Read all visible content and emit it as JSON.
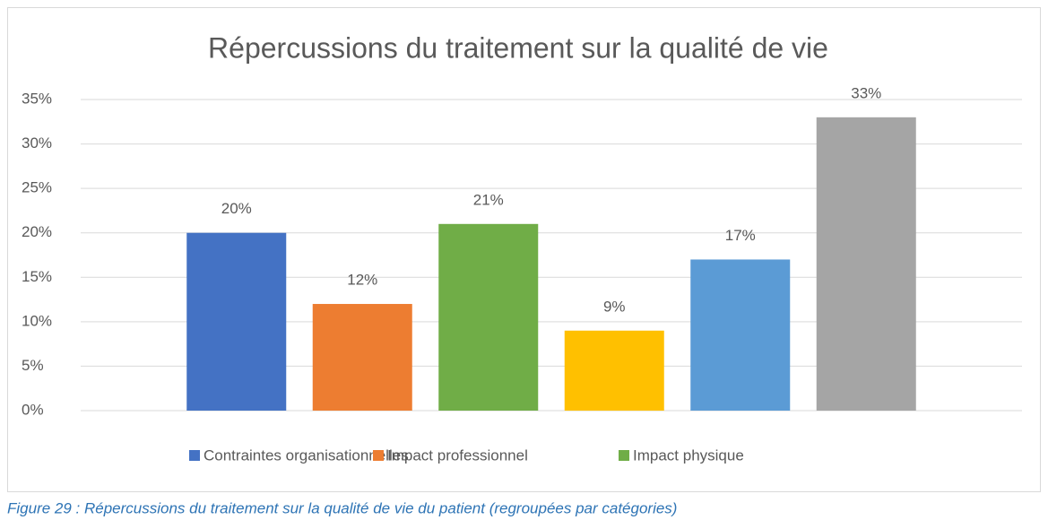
{
  "chart_data": {
    "type": "bar",
    "title": "Répercussions du traitement sur la qualité de vie",
    "values": [
      20,
      12,
      21,
      9,
      17,
      33
    ],
    "value_labels": [
      "20%",
      "12%",
      "21%",
      "9%",
      "17%",
      "33%"
    ],
    "colors": [
      "#4472c4",
      "#ed7d31",
      "#70ad47",
      "#ffc000",
      "#5b9bd5",
      "#a5a5a5"
    ],
    "legend": [
      {
        "name": "Contraintes organisationnelles",
        "color": "#4472c4"
      },
      {
        "name": "Impact professionnel",
        "color": "#ed7d31"
      },
      {
        "name": "Impact physique",
        "color": "#70ad47"
      }
    ],
    "ylim": [
      0,
      35
    ],
    "yticks": [
      {
        "value": 0,
        "label": "0%"
      },
      {
        "value": 5,
        "label": "5%"
      },
      {
        "value": 10,
        "label": "10%"
      },
      {
        "value": 15,
        "label": "15%"
      },
      {
        "value": 20,
        "label": "20%"
      },
      {
        "value": 25,
        "label": "25%"
      },
      {
        "value": 30,
        "label": "30%"
      },
      {
        "value": 35,
        "label": "35%"
      }
    ],
    "grid": true
  },
  "caption": "Figure 29 : Répercussions du traitement sur la qualité de vie du patient (regroupées par catégories)"
}
